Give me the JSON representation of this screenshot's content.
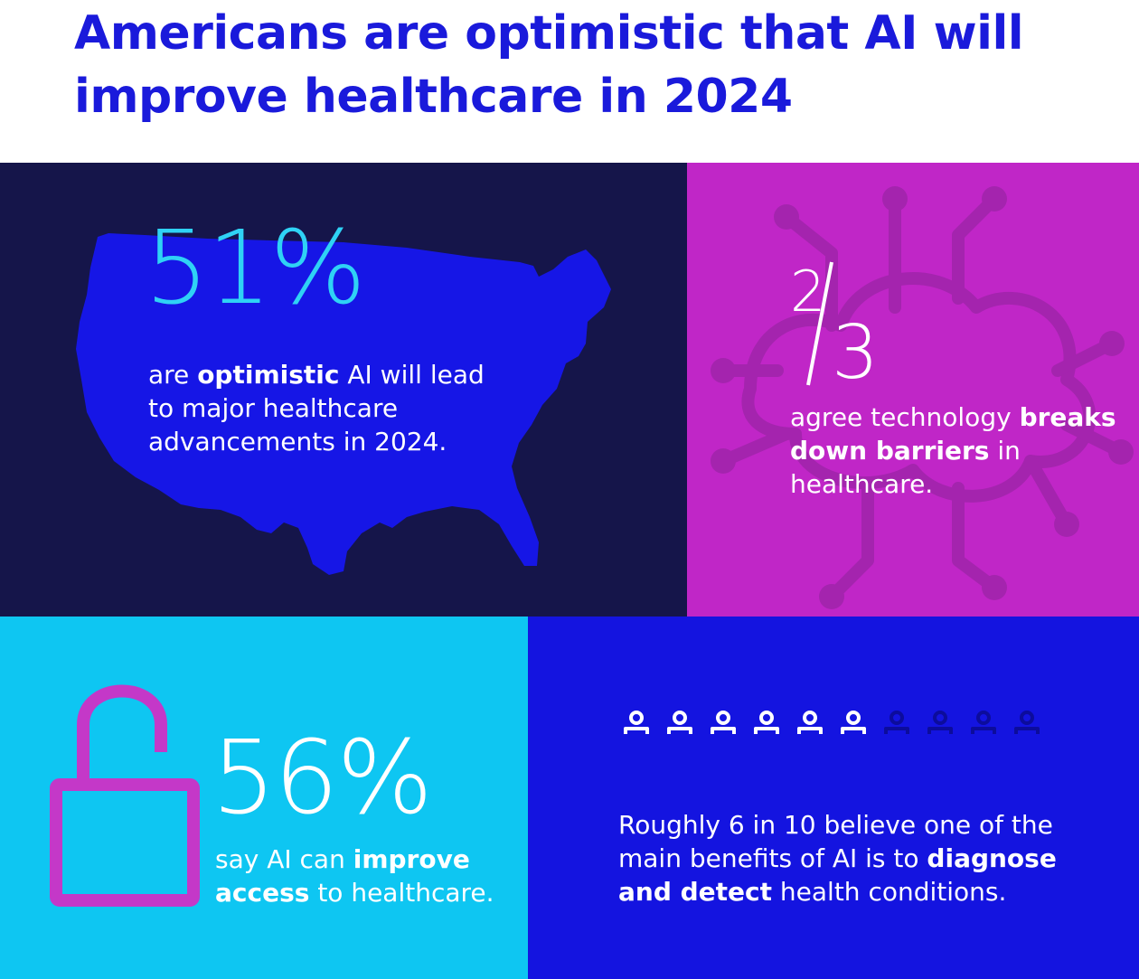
{
  "header": {
    "title": "Americans are optimistic that AI will improve healthcare in 2024"
  },
  "stat_map": {
    "value": "51%",
    "text_pre": "are ",
    "text_bold": "optimistic",
    "text_post": " AI will lead to major healthcare advancements in 2024."
  },
  "stat_circuit": {
    "numerator": "2",
    "denominator": "3",
    "text_pre": "agree technology ",
    "text_bold": "breaks down barriers",
    "text_post": " in healthcare."
  },
  "stat_lock": {
    "value": "56%",
    "text_pre": "say AI can ",
    "text_bold": "improve access",
    "text_post": " to healthcare."
  },
  "stat_people": {
    "highlighted_count": 6,
    "total_count": 10,
    "text_pre": "Roughly 6 in 10 believe one of the main benefits of AI is to ",
    "text_bold": "diagnose and detect",
    "text_post": " health conditions."
  },
  "icons": {
    "map": "us-map-icon",
    "circuit": "circuit-brain-icon",
    "lock": "open-padlock-icon",
    "person": "person-icon"
  },
  "colors": {
    "title": "#1a1adb",
    "navy": "#15154a",
    "magenta": "#c026c7",
    "cyan": "#0ec6f2",
    "blue": "#1414e0",
    "map_blue": "#1616e6",
    "circuit_line": "#a424ae",
    "lock_stroke": "#c438c8",
    "person_dim": "#0c0c9c",
    "number_cyan": "#2fd2f5"
  }
}
